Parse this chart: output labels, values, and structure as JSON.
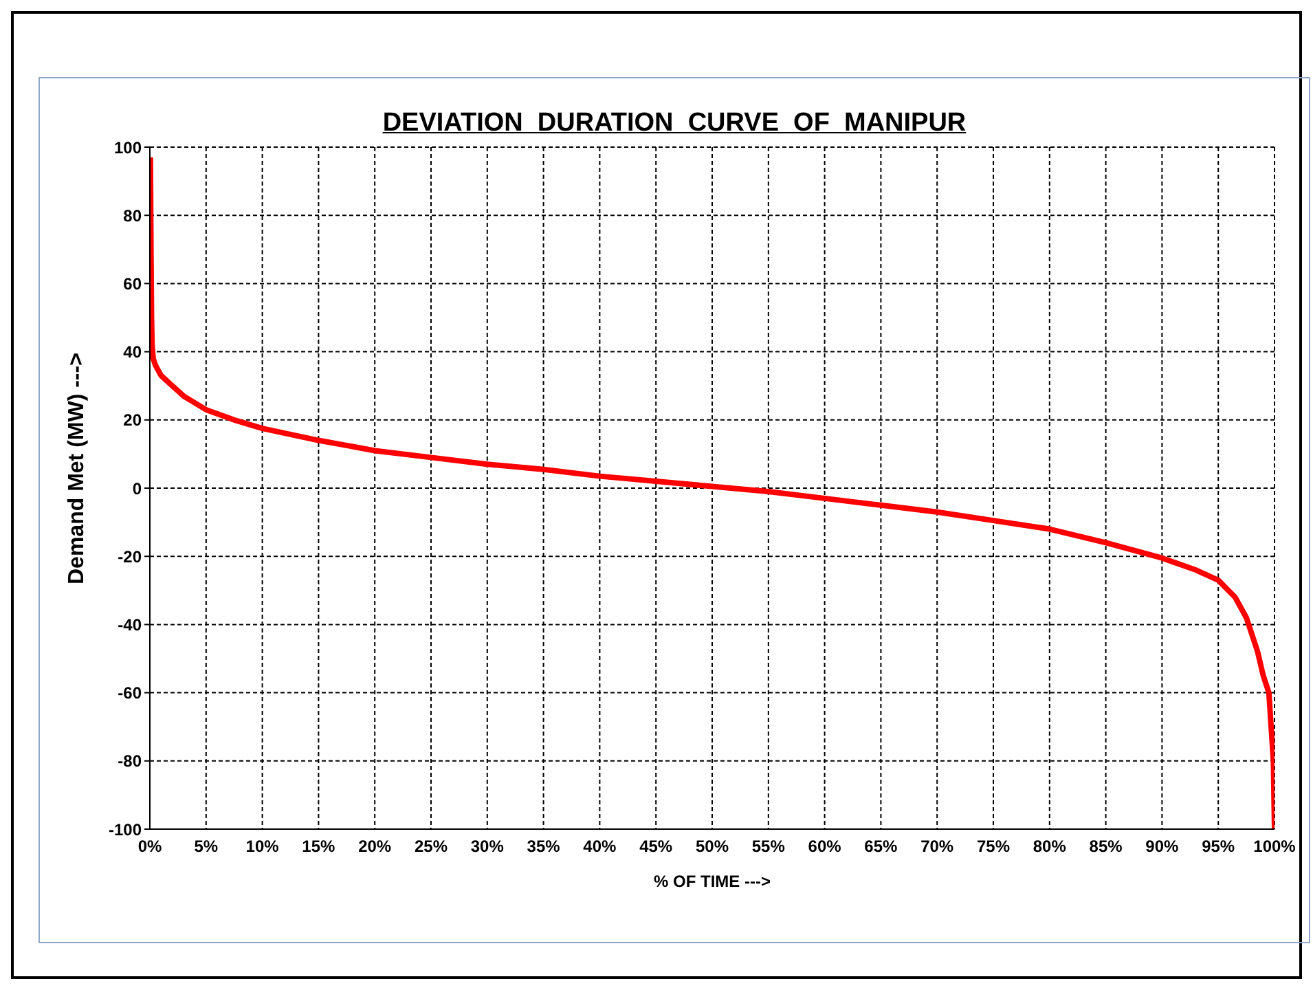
{
  "chart_data": {
    "type": "line",
    "title": "DEVIATION  DURATION  CURVE  OF  MANIPUR",
    "xlabel": "% OF TIME --->",
    "ylabel": "Demand Met (MW) --->",
    "x": [
      0.05,
      0.1,
      0.15,
      0.2,
      0.3,
      0.5,
      1,
      2,
      3,
      5,
      7.5,
      10,
      15,
      20,
      25,
      30,
      35,
      40,
      45,
      50,
      55,
      60,
      65,
      70,
      75,
      80,
      85,
      90,
      93,
      95,
      96.5,
      97.5,
      98.5,
      99,
      99.5,
      99.7,
      99.9,
      100
    ],
    "series": [
      {
        "color": "#ff0000",
        "values": [
          97,
          70,
          50,
          42,
          38,
          36,
          33,
          30,
          27,
          23,
          20,
          17.5,
          14,
          11,
          9,
          7,
          5.5,
          3.5,
          2,
          0.5,
          -1,
          -3,
          -5,
          -7,
          -9.5,
          -12,
          -16,
          -20.5,
          -24,
          -27,
          -32,
          -38,
          -48,
          -55,
          -60,
          -70,
          -80,
          -100
        ]
      }
    ],
    "xlim": [
      0,
      100
    ],
    "ylim": [
      -100,
      100
    ],
    "xticks": [
      {
        "value": 0,
        "label": "0%"
      },
      {
        "value": 5,
        "label": "5%"
      },
      {
        "value": 10,
        "label": "10%"
      },
      {
        "value": 15,
        "label": "15%"
      },
      {
        "value": 20,
        "label": "20%"
      },
      {
        "value": 25,
        "label": "25%"
      },
      {
        "value": 30,
        "label": "30%"
      },
      {
        "value": 35,
        "label": "35%"
      },
      {
        "value": 40,
        "label": "40%"
      },
      {
        "value": 45,
        "label": "45%"
      },
      {
        "value": 50,
        "label": "50%"
      },
      {
        "value": 55,
        "label": "55%"
      },
      {
        "value": 60,
        "label": "60%"
      },
      {
        "value": 65,
        "label": "65%"
      },
      {
        "value": 70,
        "label": "70%"
      },
      {
        "value": 75,
        "label": "75%"
      },
      {
        "value": 80,
        "label": "80%"
      },
      {
        "value": 85,
        "label": "85%"
      },
      {
        "value": 90,
        "label": "90%"
      },
      {
        "value": 95,
        "label": "95%"
      },
      {
        "value": 100,
        "label": "100%"
      }
    ],
    "yticks": [
      -100,
      -80,
      -60,
      -40,
      -20,
      0,
      20,
      40,
      60,
      80,
      100
    ],
    "grid": true,
    "legend": false,
    "marker": "none",
    "line_style": "solid"
  }
}
